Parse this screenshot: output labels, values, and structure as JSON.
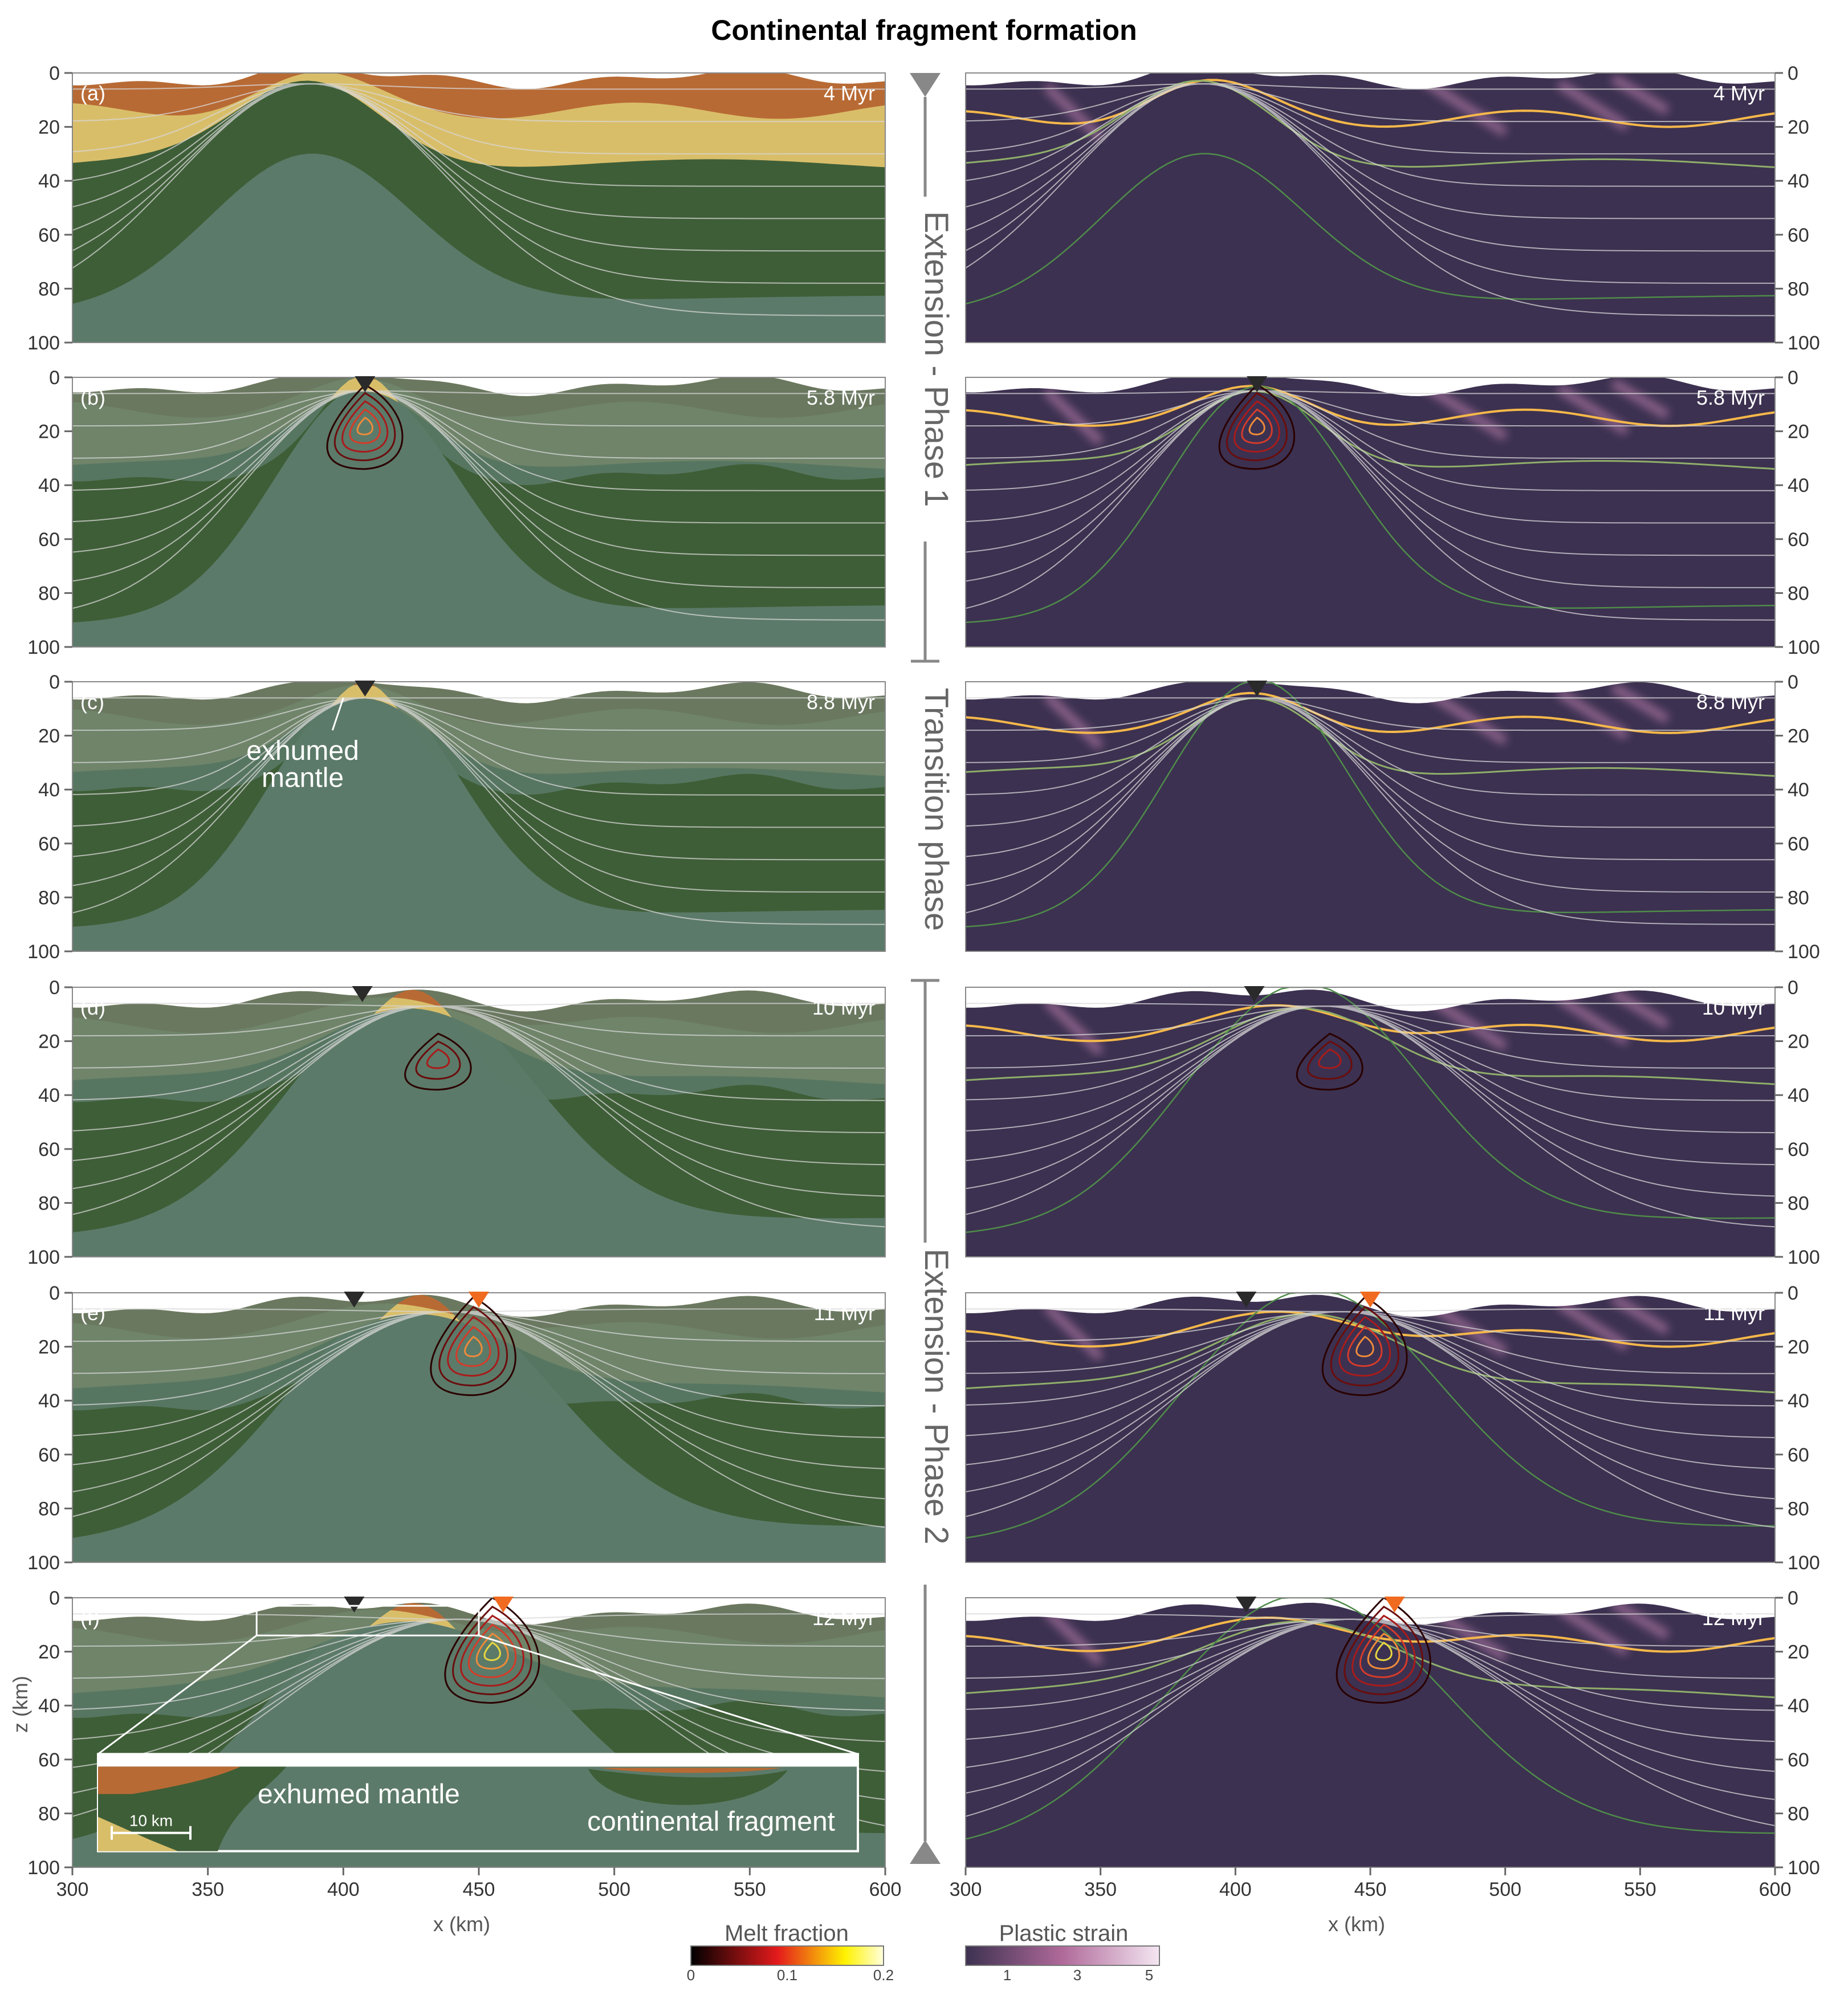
{
  "title": "Continental fragment formation",
  "axes": {
    "x_label": "x (km)",
    "z_label": "z (km)",
    "x_ticks": [
      "300",
      "350",
      "400",
      "450",
      "500",
      "550",
      "600"
    ],
    "z_ticks": [
      "0",
      "20",
      "40",
      "60",
      "80",
      "100"
    ],
    "x_range": [
      300,
      600
    ],
    "z_range": [
      0,
      100
    ]
  },
  "panels": [
    {
      "label": "(a)",
      "time": "4 Myr"
    },
    {
      "label": "(b)",
      "time": "5.8 Myr"
    },
    {
      "label": "(c)",
      "time": "8.8 Myr"
    },
    {
      "label": "(d)",
      "time": "10 Myr"
    },
    {
      "label": "(e)",
      "time": "11 Myr"
    },
    {
      "label": "(f)",
      "time": "12 Myr"
    }
  ],
  "phases": [
    "Extension - Phase 1",
    "Transition phase",
    "Extension - Phase 2"
  ],
  "annotations": {
    "exhumed_mantle_c_line1": "exhumed",
    "exhumed_mantle_c_line2": "mantle",
    "inset_exhumed": "exhumed mantle",
    "inset_fragment": "continental fragment",
    "inset_scale": "10 km"
  },
  "colorbars": {
    "melt": {
      "label": "Melt fraction",
      "ticks": [
        "0",
        "0.1",
        "0.2"
      ],
      "colors": [
        "#000000",
        "#e41a1c",
        "#fff200",
        "#ffffdd"
      ]
    },
    "strain": {
      "label": "Plastic strain",
      "ticks": [
        "1",
        "3",
        "5"
      ],
      "colors": [
        "#3c3150",
        "#b06a9a",
        "#f4e6f2"
      ]
    }
  },
  "colors": {
    "upper_crust": "#b86a34",
    "lower_crust": "#d9be6a",
    "lith_mantle": "#3e5e37",
    "asthenosphere": "#5c7a69",
    "strain_bg": "#3c3150",
    "moho_line": "#f5b84a",
    "marker_black": "#2a2a2a",
    "marker_orange": "#f06a1f"
  }
}
